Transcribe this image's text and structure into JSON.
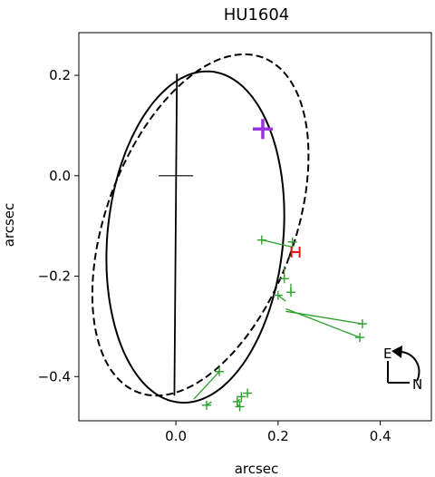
{
  "chart_data": {
    "type": "scatter",
    "title": "HU1604",
    "xlabel": "arcsec",
    "ylabel": "arcsec",
    "xlim": [
      -0.19,
      0.5
    ],
    "ylim": [
      -0.488,
      0.285
    ],
    "xticks": [
      0.0,
      0.2,
      0.4
    ],
    "xtick_labels": [
      "0.0",
      "0.2",
      "0.4"
    ],
    "yticks": [
      0.2,
      0.0,
      -0.2,
      -0.4
    ],
    "ytick_labels": [
      "0.2",
      "0.0",
      "−0.2",
      "−0.4"
    ],
    "grid": false,
    "colors": {
      "observations": "#2ca02c",
      "purple_marker": "#9933dd",
      "red_marker": "#ee1111",
      "orbit": "#000000"
    },
    "series": [
      {
        "style": "solid-ellipse",
        "center": [
          0.038,
          -0.122
        ],
        "semi_axes": [
          0.172,
          0.331
        ],
        "rotation_deg": -5.4
      },
      {
        "style": "dashed-ellipse",
        "center": [
          0.048,
          -0.098
        ],
        "semi_axes": [
          0.185,
          0.355
        ],
        "rotation_deg": -19.8
      }
    ],
    "line_of_nodes": [
      [
        0.002,
        0.203
      ],
      [
        -0.003,
        -0.438
      ]
    ],
    "center_marker": [
      0.0,
      0.0
    ],
    "purple_marker": [
      0.17,
      0.093
    ],
    "red_marker": [
      0.235,
      -0.152
    ],
    "observations": [
      {
        "obs": [
          0.168,
          -0.128
        ],
        "fit": [
          0.228,
          -0.142
        ]
      },
      {
        "obs": [
          0.228,
          -0.132
        ],
        "fit": [
          0.228,
          -0.145
        ]
      },
      {
        "obs": [
          0.212,
          -0.205
        ],
        "fit": [
          0.212,
          -0.18
        ]
      },
      {
        "obs": [
          0.225,
          -0.232
        ],
        "fit": [
          0.225,
          -0.215
        ]
      },
      {
        "obs": [
          0.2,
          -0.238
        ],
        "fit": [
          0.215,
          -0.25
        ]
      },
      {
        "obs": [
          0.365,
          -0.295
        ],
        "fit": [
          0.215,
          -0.27
        ]
      },
      {
        "obs": [
          0.36,
          -0.322
        ],
        "fit": [
          0.215,
          -0.265
        ]
      },
      {
        "obs": [
          0.085,
          -0.39
        ],
        "fit": [
          0.035,
          -0.445
        ]
      },
      {
        "obs": [
          0.06,
          -0.457
        ],
        "fit": [
          0.07,
          -0.45
        ]
      },
      {
        "obs": [
          0.12,
          -0.45
        ],
        "fit": [
          0.125,
          -0.445
        ]
      },
      {
        "obs": [
          0.128,
          -0.44
        ],
        "fit": [
          0.135,
          -0.44
        ]
      },
      {
        "obs": [
          0.125,
          -0.46
        ],
        "fit": [
          0.12,
          -0.455
        ]
      },
      {
        "obs": [
          0.14,
          -0.433
        ],
        "fit": [
          0.14,
          -0.435
        ]
      }
    ],
    "compass": {
      "east": "E",
      "north": "N"
    }
  }
}
